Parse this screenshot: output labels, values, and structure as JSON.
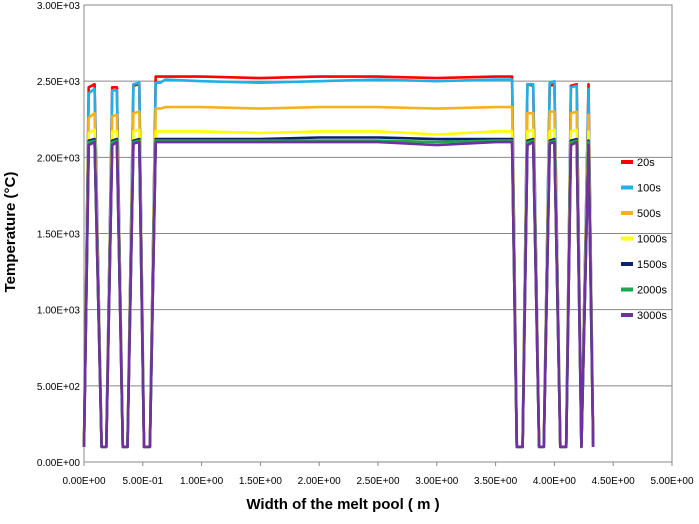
{
  "chart_data": {
    "type": "line",
    "title": "",
    "xlabel": "Width of the melt pool ( m )",
    "ylabel": "Temperature (°C)",
    "xlim": [
      0,
      5
    ],
    "ylim": [
      0,
      3000
    ],
    "x_ticks": [
      0,
      0.5,
      1,
      1.5,
      2,
      2.5,
      3,
      3.5,
      4,
      4.5,
      5
    ],
    "x_tick_labels": [
      "0.00E+00",
      "5.00E-01",
      "1.00E+00",
      "1.50E+00",
      "2.00E+00",
      "2.50E+00",
      "3.00E+00",
      "3.50E+00",
      "4.00E+00",
      "4.50E+00",
      "5.00E+00"
    ],
    "y_ticks": [
      0,
      500,
      1000,
      1500,
      2000,
      2500,
      3000
    ],
    "y_tick_labels": [
      "0.00E+00",
      "5.00E+02",
      "1.00E+03",
      "1.50E+03",
      "2.00E+03",
      "2.50E+03",
      "3.00E+03"
    ],
    "grid": "horizontal",
    "legend_position": "right",
    "profile_x": [
      0.0,
      0.04,
      0.09,
      0.15,
      0.19,
      0.24,
      0.28,
      0.33,
      0.37,
      0.42,
      0.47,
      0.51,
      0.56,
      0.61,
      0.65,
      0.69,
      1.0,
      1.5,
      2.0,
      2.5,
      3.0,
      3.5,
      3.64,
      3.68,
      3.73,
      3.77,
      3.82,
      3.87,
      3.91,
      3.96,
      4.0,
      4.05,
      4.1,
      4.14,
      4.19,
      4.23,
      4.29,
      4.33
    ],
    "series": [
      {
        "name": "20s",
        "color": "#ff0000",
        "values": [
          100,
          2460,
          2480,
          100,
          100,
          2460,
          2460,
          100,
          100,
          2470,
          2480,
          100,
          100,
          2530,
          2530,
          2530,
          2530,
          2520,
          2530,
          2530,
          2520,
          2530,
          2530,
          100,
          100,
          2480,
          2470,
          100,
          100,
          2470,
          2480,
          100,
          100,
          2470,
          2480,
          100,
          2480,
          100
        ]
      },
      {
        "name": "100s",
        "color": "#1fb0e6",
        "values": [
          100,
          2420,
          2450,
          100,
          100,
          2440,
          2440,
          100,
          100,
          2480,
          2490,
          100,
          100,
          2490,
          2490,
          2510,
          2500,
          2490,
          2500,
          2510,
          2500,
          2510,
          2510,
          100,
          100,
          2480,
          2480,
          100,
          100,
          2490,
          2500,
          100,
          100,
          2460,
          2470,
          100,
          2450,
          100
        ]
      },
      {
        "name": "500s",
        "color": "#f6b21a",
        "values": [
          100,
          2260,
          2290,
          100,
          100,
          2270,
          2280,
          100,
          100,
          2290,
          2300,
          100,
          100,
          2320,
          2320,
          2330,
          2330,
          2320,
          2330,
          2330,
          2320,
          2330,
          2330,
          100,
          100,
          2290,
          2290,
          100,
          100,
          2300,
          2300,
          100,
          100,
          2290,
          2300,
          100,
          2280,
          100
        ]
      },
      {
        "name": "1000s",
        "color": "#ffff00",
        "values": [
          100,
          2160,
          2180,
          100,
          100,
          2170,
          2170,
          100,
          100,
          2170,
          2180,
          100,
          100,
          2170,
          2170,
          2170,
          2170,
          2160,
          2170,
          2170,
          2150,
          2170,
          2170,
          100,
          100,
          2170,
          2180,
          100,
          100,
          2170,
          2180,
          100,
          100,
          2170,
          2180,
          100,
          2170,
          100
        ]
      },
      {
        "name": "1500s",
        "color": "#0b1f6b",
        "values": [
          100,
          2110,
          2120,
          100,
          100,
          2110,
          2120,
          100,
          100,
          2110,
          2120,
          100,
          100,
          2120,
          2120,
          2120,
          2120,
          2120,
          2130,
          2130,
          2120,
          2120,
          2120,
          100,
          100,
          2110,
          2120,
          100,
          100,
          2110,
          2120,
          100,
          100,
          2110,
          2120,
          100,
          2110,
          100
        ]
      },
      {
        "name": "2000s",
        "color": "#1aa84a",
        "values": [
          100,
          2100,
          2110,
          100,
          100,
          2100,
          2110,
          100,
          100,
          2100,
          2110,
          100,
          100,
          2110,
          2110,
          2110,
          2110,
          2110,
          2110,
          2110,
          2100,
          2110,
          2110,
          100,
          100,
          2100,
          2110,
          100,
          100,
          2100,
          2110,
          100,
          100,
          2100,
          2110,
          100,
          2100,
          100
        ]
      },
      {
        "name": "3000s",
        "color": "#7030a0",
        "values": [
          100,
          2080,
          2100,
          100,
          100,
          2080,
          2100,
          100,
          100,
          2090,
          2100,
          100,
          100,
          2100,
          2100,
          2100,
          2100,
          2100,
          2100,
          2100,
          2080,
          2100,
          2100,
          100,
          100,
          2080,
          2100,
          100,
          100,
          2090,
          2100,
          100,
          100,
          2080,
          2100,
          100,
          2080,
          100
        ]
      }
    ]
  }
}
